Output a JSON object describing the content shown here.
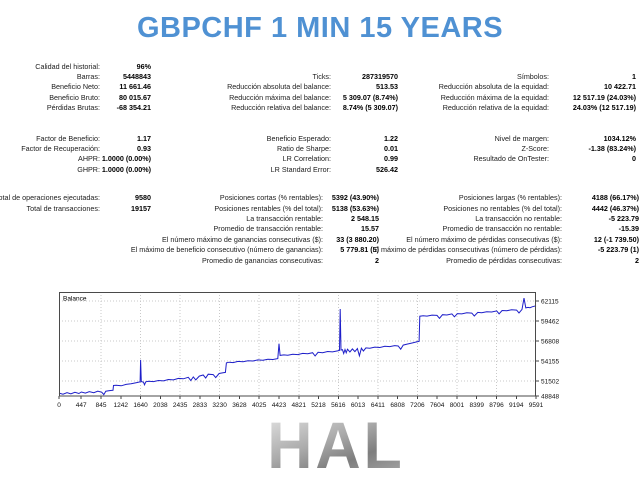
{
  "title": "GBPCHF 1 MIN 15 YEARS",
  "colors": {
    "title_blue": "#4f91d3",
    "balance_line": "#1d1ec9",
    "grid_gray": "#c9c9c9",
    "watermark_gray": "#9a9a9a"
  },
  "stats_blocks": [
    {
      "rows": [
        [
          {
            "label": "Calidad del historial:",
            "value": "96%"
          },
          null,
          null
        ],
        [
          {
            "label": "Barras:",
            "value": "5448843"
          },
          {
            "label": "Ticks:",
            "value": "287319570"
          },
          {
            "label": "Símbolos:",
            "value": "1"
          }
        ],
        [
          {
            "label": "Beneficio Neto:",
            "value": "11 661.46"
          },
          {
            "label": "Reducción absoluta del balance:",
            "value": "513.53"
          },
          {
            "label": "Reducción absoluta de la equidad:",
            "value": "10 422.71"
          }
        ],
        [
          {
            "label": "Beneficio Bruto:",
            "value": "80 015.67"
          },
          {
            "label": "Reducción máxima del balance:",
            "value": "5 309.07 (8.74%)"
          },
          {
            "label": "Reducción máxima de la equidad:",
            "value": "12 517.19 (24.03%)"
          }
        ],
        [
          {
            "label": "Pérdidas Brutas:",
            "value": "-68 354.21"
          },
          {
            "label": "Reducción relativa del balance:",
            "value": "8.74% (5 309.07)"
          },
          {
            "label": "Reducción relativa de la equidad:",
            "value": "24.03% (12 517.19)"
          }
        ]
      ]
    },
    {
      "rows": [
        [
          {
            "label": "Factor de Beneficio:",
            "value": "1.17"
          },
          {
            "label": "Beneficio Esperado:",
            "value": "1.22"
          },
          {
            "label": "Nivel de margen:",
            "value": "1034.12%"
          }
        ],
        [
          {
            "label": "Factor de Recuperación:",
            "value": "0.93"
          },
          {
            "label": "Ratio de Sharpe:",
            "value": "0.01"
          },
          {
            "label": "Z-Score:",
            "value": "-1.38 (83.24%)"
          }
        ],
        [
          {
            "label": "AHPR:",
            "value": "1.0000 (0.00%)"
          },
          {
            "label": "LR Correlation:",
            "value": "0.99"
          },
          {
            "label": "Resultado de OnTester:",
            "value": "0"
          }
        ],
        [
          {
            "label": "GHPR:",
            "value": "1.0000 (0.00%)"
          },
          {
            "label": "LR Standard Error:",
            "value": "526.42"
          },
          null
        ]
      ]
    },
    {
      "rows": [
        [
          {
            "label": "Total de operaciones ejecutadas:",
            "value": "9580"
          },
          {
            "label": "Posiciones cortas (% rentables):",
            "value": "5392 (43.90%)"
          },
          {
            "label": "Posiciones largas (% rentables):",
            "value": "4188 (66.17%)"
          }
        ],
        [
          {
            "label": "Total de transacciones:",
            "value": "19157"
          },
          {
            "label": "Posiciones rentables (% del total):",
            "value": "5138 (53.63%)"
          },
          {
            "label": "Posiciones no rentables (% del total):",
            "value": "4442 (46.37%)"
          }
        ],
        [
          null,
          {
            "label": "La transacción rentable:",
            "value": "2 548.15"
          },
          {
            "label": "La transacción no rentable:",
            "value": "-5 223.79"
          }
        ],
        [
          null,
          {
            "label": "Promedio de transacción rentable:",
            "value": "15.57"
          },
          {
            "label": "Promedio de transacción no rentable:",
            "value": "-15.39"
          }
        ],
        [
          null,
          {
            "label": "El número máximo de ganancias consecutivas ($):",
            "value": "33 (3 880.20)"
          },
          {
            "label": "El número máximo de pérdidas consecutivas ($):",
            "value": "12 (-1 739.50)"
          }
        ],
        [
          null,
          {
            "label": "El máximo de beneficio consecutivo (número de ganancias):",
            "value": "5 779.81 (5)"
          },
          {
            "label": "El máximo de pérdidas consecutivas (número de pérdidas):",
            "value": "-5 223.79 (1)"
          }
        ],
        [
          null,
          {
            "label": "Promedio de ganancias consecutivas:",
            "value": "2"
          },
          {
            "label": "Promedio de pérdidas consecutivas:",
            "value": "2"
          }
        ]
      ]
    }
  ],
  "chart_data": {
    "type": "line",
    "title": "Balance",
    "xlabel": "",
    "ylabel": "",
    "legend_position": "top-left",
    "grid": "dotted",
    "x_ticks": [
      0,
      447,
      845,
      1242,
      1640,
      2038,
      2435,
      2833,
      3230,
      3628,
      4025,
      4423,
      4821,
      5218,
      5616,
      6013,
      6411,
      6808,
      7206,
      7604,
      8001,
      8399,
      8796,
      9194,
      9591
    ],
    "y_ticks": [
      62115,
      59462,
      56808,
      54155,
      51502,
      48848
    ],
    "xlim": [
      0,
      9591
    ],
    "ylim": [
      48848,
      63350
    ],
    "series": [
      {
        "name": "Balance",
        "color": "#1d1ec9",
        "points": [
          [
            0,
            49900
          ],
          [
            80,
            49750
          ],
          [
            160,
            49950
          ],
          [
            240,
            49800
          ],
          [
            320,
            50000
          ],
          [
            400,
            49850
          ],
          [
            450,
            50050
          ],
          [
            530,
            49900
          ],
          [
            610,
            50100
          ],
          [
            700,
            49950
          ],
          [
            780,
            50150
          ],
          [
            860,
            50000
          ],
          [
            900,
            49700
          ],
          [
            940,
            50150
          ],
          [
            1000,
            50200
          ],
          [
            1060,
            50250
          ],
          [
            1085,
            50270
          ],
          [
            1095,
            50900
          ],
          [
            1150,
            50950
          ],
          [
            1250,
            50870
          ],
          [
            1350,
            51050
          ],
          [
            1450,
            51150
          ],
          [
            1550,
            51280
          ],
          [
            1630,
            51380
          ],
          [
            1640,
            54300
          ],
          [
            1655,
            51420
          ],
          [
            1700,
            51350
          ],
          [
            1720,
            51000
          ],
          [
            1745,
            51400
          ],
          [
            1800,
            51480
          ],
          [
            1900,
            51420
          ],
          [
            2000,
            51570
          ],
          [
            2100,
            51520
          ],
          [
            2200,
            51700
          ],
          [
            2300,
            51650
          ],
          [
            2400,
            51850
          ],
          [
            2500,
            51800
          ],
          [
            2600,
            52000
          ],
          [
            2650,
            51570
          ],
          [
            2700,
            52050
          ],
          [
            2750,
            51650
          ],
          [
            2820,
            52150
          ],
          [
            2900,
            52300
          ],
          [
            2950,
            51900
          ],
          [
            3000,
            52400
          ],
          [
            3100,
            52350
          ],
          [
            3150,
            51950
          ],
          [
            3220,
            52500
          ],
          [
            3300,
            52600
          ],
          [
            3345,
            52650
          ],
          [
            3365,
            53900
          ],
          [
            3420,
            54000
          ],
          [
            3500,
            53950
          ],
          [
            3600,
            54100
          ],
          [
            3700,
            54050
          ],
          [
            3800,
            54200
          ],
          [
            3900,
            54150
          ],
          [
            4000,
            54300
          ],
          [
            4100,
            54250
          ],
          [
            4200,
            54400
          ],
          [
            4300,
            54350
          ],
          [
            4400,
            54470
          ],
          [
            4423,
            56450
          ],
          [
            4445,
            54900
          ],
          [
            4520,
            54960
          ],
          [
            4600,
            54910
          ],
          [
            4700,
            55060
          ],
          [
            4800,
            55010
          ],
          [
            4900,
            55160
          ],
          [
            5000,
            55110
          ],
          [
            5100,
            55260
          ],
          [
            5150,
            54820
          ],
          [
            5210,
            55310
          ],
          [
            5300,
            55260
          ],
          [
            5400,
            55410
          ],
          [
            5500,
            55360
          ],
          [
            5600,
            55500
          ],
          [
            5640,
            55560
          ],
          [
            5655,
            61050
          ],
          [
            5670,
            55620
          ],
          [
            5700,
            55660
          ],
          [
            5725,
            55150
          ],
          [
            5750,
            55680
          ],
          [
            5775,
            55250
          ],
          [
            5800,
            55720
          ],
          [
            5850,
            55350
          ],
          [
            5900,
            55760
          ],
          [
            5950,
            55400
          ],
          [
            6000,
            55800
          ],
          [
            6040,
            54850
          ],
          [
            6080,
            55850
          ],
          [
            6120,
            55480
          ],
          [
            6170,
            55900
          ],
          [
            6250,
            55860
          ],
          [
            6350,
            56000
          ],
          [
            6450,
            55950
          ],
          [
            6550,
            56100
          ],
          [
            6650,
            56060
          ],
          [
            6750,
            56200
          ],
          [
            6820,
            56150
          ],
          [
            6870,
            55720
          ],
          [
            6920,
            56260
          ],
          [
            7000,
            56400
          ],
          [
            7100,
            56550
          ],
          [
            7200,
            56700
          ],
          [
            7240,
            56760
          ],
          [
            7255,
            60100
          ],
          [
            7320,
            60150
          ],
          [
            7400,
            60110
          ],
          [
            7500,
            60250
          ],
          [
            7600,
            60210
          ],
          [
            7650,
            59820
          ],
          [
            7710,
            60300
          ],
          [
            7800,
            60260
          ],
          [
            7900,
            60400
          ],
          [
            7950,
            60020
          ],
          [
            8010,
            60450
          ],
          [
            8100,
            60410
          ],
          [
            8200,
            60550
          ],
          [
            8300,
            60510
          ],
          [
            8350,
            60120
          ],
          [
            8420,
            60600
          ],
          [
            8500,
            60560
          ],
          [
            8600,
            60700
          ],
          [
            8700,
            60660
          ],
          [
            8800,
            60800
          ],
          [
            8850,
            60420
          ],
          [
            8910,
            60850
          ],
          [
            9000,
            60810
          ],
          [
            9100,
            60950
          ],
          [
            9200,
            60910
          ],
          [
            9250,
            60520
          ],
          [
            9310,
            61000
          ],
          [
            9350,
            62500
          ],
          [
            9385,
            61200
          ],
          [
            9430,
            61260
          ],
          [
            9470,
            61220
          ],
          [
            9520,
            61360
          ],
          [
            9560,
            61420
          ],
          [
            9591,
            61500
          ]
        ]
      }
    ]
  },
  "watermark": {
    "text": "HAL"
  }
}
